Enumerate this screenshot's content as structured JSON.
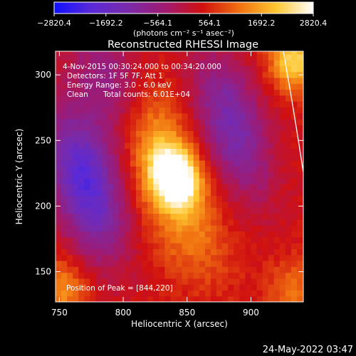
{
  "colorbar": {
    "ticks": [
      "−2820.4",
      "−1692.2",
      "−564.1",
      "564.1",
      "1692.2",
      "2820.4"
    ],
    "tick_values": [
      -2820.4,
      -1692.2,
      -564.1,
      564.1,
      1692.2,
      2820.4
    ],
    "range": [
      -2820.4,
      2820.4
    ],
    "units": "(photons cm⁻² s⁻¹ asec⁻²)",
    "stops": [
      "#1010ff",
      "#5a2ad8",
      "#7a2aa8",
      "#a01a70",
      "#d01010",
      "#f07010",
      "#ffc830",
      "#ffffff"
    ]
  },
  "title": "Reconstructed RHESSI Image",
  "info": {
    "time": "4-Nov-2015 00:30:24.000 to 00:34:20.000",
    "detectors": "Detectors: 1F 5F 7F, Att 1",
    "energy": "Energy Range: 3.0 - 6.0 keV",
    "clean": "Clean",
    "counts": "Total counts: 6.01E+04"
  },
  "peak_label": "Position of Peak = [844,220]",
  "timestamp": "24-May-2022 03:47",
  "chart_data": {
    "type": "heatmap",
    "title": "Reconstructed RHESSI Image",
    "xlabel": "Heliocentric X (arcsec)",
    "ylabel": "Heliocentric Y (arcsec)",
    "xlim": [
      747,
      941
    ],
    "ylim": [
      127,
      318
    ],
    "xticks": [
      750,
      800,
      850,
      900
    ],
    "yticks": [
      150,
      200,
      250,
      300
    ],
    "peak": {
      "x": 844,
      "y": 220,
      "value": 2820.4
    },
    "grid": false,
    "colorbar": "top-horizontal",
    "features": [
      {
        "kind": "peak-source",
        "x": 840,
        "y": 222,
        "value": 2820.4
      },
      {
        "kind": "positive-region",
        "x": 825,
        "y": 248,
        "value": 1500
      },
      {
        "kind": "positive-region",
        "x": 848,
        "y": 188,
        "value": 1100
      },
      {
        "kind": "negative-region",
        "x": 770,
        "y": 218,
        "value": -2200
      },
      {
        "kind": "negative-region",
        "x": 885,
        "y": 262,
        "value": -1500
      },
      {
        "kind": "negative-region",
        "x": 790,
        "y": 292,
        "value": -1000
      },
      {
        "kind": "corner-positive",
        "x": 934,
        "y": 312,
        "value": 2000
      },
      {
        "kind": "corner-positive",
        "x": 752,
        "y": 137,
        "value": 1300
      },
      {
        "kind": "corner-positive",
        "x": 934,
        "y": 137,
        "value": 1000
      }
    ]
  }
}
